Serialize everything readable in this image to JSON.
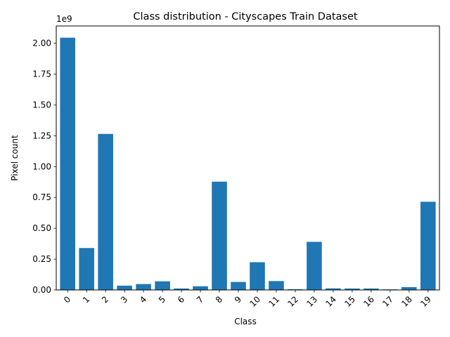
{
  "chart_data": {
    "type": "bar",
    "title": "Class distribution - Cityscapes Train Dataset",
    "xlabel": "Class",
    "ylabel": "Pixel count",
    "y_offset_label": "1e9",
    "categories": [
      "0",
      "1",
      "2",
      "3",
      "4",
      "5",
      "6",
      "7",
      "8",
      "9",
      "10",
      "11",
      "12",
      "13",
      "14",
      "15",
      "16",
      "17",
      "18",
      "19"
    ],
    "values": [
      2.045,
      0.34,
      1.265,
      0.035,
      0.048,
      0.07,
      0.012,
      0.03,
      0.878,
      0.065,
      0.225,
      0.072,
      0.006,
      0.39,
      0.013,
      0.012,
      0.012,
      0.005,
      0.023,
      0.715
    ],
    "value_scale": 1000000000.0,
    "ylim": [
      0,
      2.14
    ],
    "y_ticks": [
      0,
      0.25,
      0.5,
      0.75,
      1.0,
      1.25,
      1.5,
      1.75,
      2.0
    ],
    "y_tick_labels": [
      "0.00",
      "0.25",
      "0.50",
      "0.75",
      "1.00",
      "1.25",
      "1.50",
      "1.75",
      "2.00"
    ],
    "bar_color": "#1f77b4",
    "grid": false,
    "legend": "none"
  }
}
